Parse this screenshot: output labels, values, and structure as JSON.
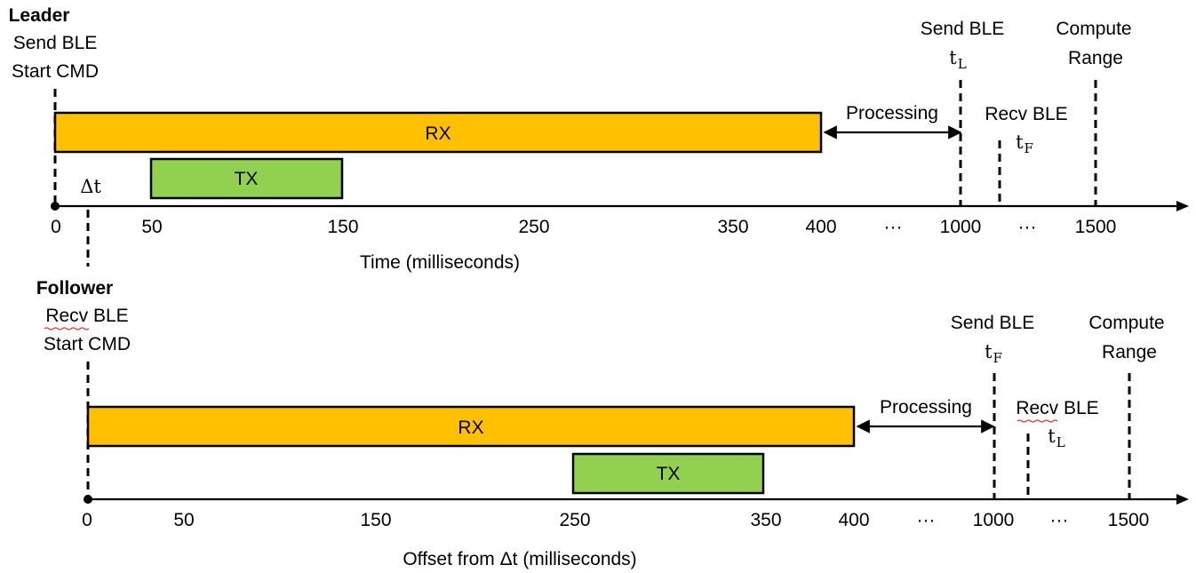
{
  "leader": {
    "title": "Leader",
    "start_line1": "Send BLE",
    "start_line2": "Start CMD",
    "rx_label": "RX",
    "tx_label": "TX",
    "delta_label": "Δt",
    "processing_label": "Processing",
    "send_line1": "Send BLE",
    "send_var": "t",
    "send_sub": "L",
    "recv_line1": "Recv BLE",
    "recv_var": "t",
    "recv_sub": "F",
    "compute_line1": "Compute",
    "compute_line2": "Range",
    "axis_title": "Time (milliseconds)",
    "ticks": [
      "0",
      "50",
      "150",
      "250",
      "350",
      "400",
      "···",
      "1000",
      "···",
      "1500"
    ]
  },
  "follower": {
    "title": "Follower",
    "start_line1": "Recv BLE",
    "start_line2": "Start CMD",
    "rx_label": "RX",
    "tx_label": "TX",
    "processing_label": "Processing",
    "send_line1": "Send BLE",
    "send_var": "t",
    "send_sub": "F",
    "recv_line1": "Recv BLE",
    "recv_var": "t",
    "recv_sub": "L",
    "compute_line1": "Compute",
    "compute_line2": "Range",
    "axis_title": "Offset from Δt (milliseconds)",
    "ticks": [
      "0",
      "50",
      "150",
      "250",
      "350",
      "400",
      "···",
      "1000",
      "···",
      "1500"
    ]
  }
}
